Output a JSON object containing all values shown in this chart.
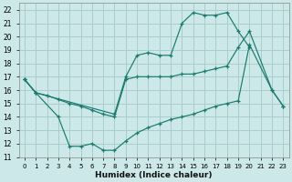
{
  "xlabel": "Humidex (Indice chaleur)",
  "bg_color": "#cce8e8",
  "grid_color": "#aacccc",
  "line_color": "#1a7a6e",
  "xlim": [
    -0.5,
    23.5
  ],
  "ylim": [
    11,
    22.5
  ],
  "yticks": [
    11,
    12,
    13,
    14,
    15,
    16,
    17,
    18,
    19,
    20,
    21,
    22
  ],
  "xticks": [
    0,
    1,
    2,
    3,
    4,
    5,
    6,
    7,
    8,
    9,
    10,
    11,
    12,
    13,
    14,
    15,
    16,
    17,
    18,
    19,
    20,
    21,
    22,
    23
  ],
  "curve1_x": [
    0,
    1,
    8,
    9,
    10,
    11,
    12,
    13,
    14,
    15,
    16,
    17,
    18,
    19,
    20
  ],
  "curve1_y": [
    16.8,
    15.8,
    14.2,
    17.0,
    18.6,
    18.8,
    18.6,
    18.6,
    21.0,
    21.8,
    21.6,
    21.6,
    21.8,
    20.4,
    19.2
  ],
  "curve2_x": [
    0,
    1,
    3,
    4,
    5,
    6,
    7,
    8,
    9,
    10,
    11,
    12,
    13,
    14,
    15,
    16,
    17,
    18,
    19,
    20,
    22,
    23
  ],
  "curve2_y": [
    16.8,
    15.8,
    14.0,
    11.8,
    11.8,
    12.0,
    11.5,
    11.5,
    12.2,
    12.8,
    13.2,
    13.5,
    13.8,
    14.0,
    14.2,
    14.5,
    14.8,
    15.0,
    15.2,
    19.4,
    16.0,
    14.8
  ],
  "curve3_x": [
    0,
    1,
    2,
    3,
    4,
    5,
    6,
    7,
    8,
    9,
    10,
    11,
    12,
    13,
    14,
    15,
    16,
    17,
    18,
    19,
    20,
    22,
    23
  ],
  "curve3_y": [
    16.8,
    15.8,
    15.6,
    15.3,
    15.0,
    14.8,
    14.5,
    14.2,
    14.0,
    16.8,
    17.0,
    17.0,
    17.0,
    17.0,
    17.2,
    17.2,
    17.4,
    17.6,
    17.8,
    19.2,
    20.4,
    16.0,
    14.8
  ]
}
